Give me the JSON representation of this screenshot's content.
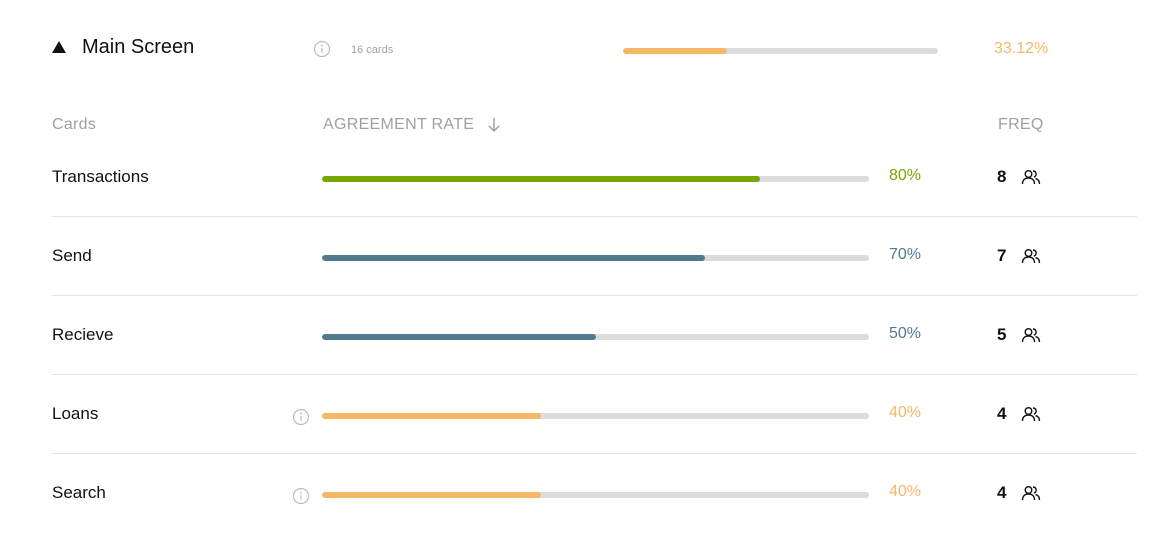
{
  "header": {
    "title": "Main Screen",
    "card_count": "16 cards",
    "progress": 0.3312,
    "percent_label": "33.12%",
    "color": "#f7b866"
  },
  "columns": {
    "cards": "Cards",
    "agreement_rate": "AGREEMENT RATE",
    "freq": "FREQ"
  },
  "rows": [
    {
      "name": "Transactions",
      "percent": 80,
      "percent_label": "80%",
      "freq": "8",
      "color": "#78a500",
      "info": false
    },
    {
      "name": "Send",
      "percent": 70,
      "percent_label": "70%",
      "freq": "7",
      "color": "#527a8e",
      "info": false
    },
    {
      "name": "Recieve",
      "percent": 50,
      "percent_label": "50%",
      "freq": "5",
      "color": "#527a8e",
      "info": false
    },
    {
      "name": "Loans",
      "percent": 40,
      "percent_label": "40%",
      "freq": "4",
      "color": "#f7b866",
      "info": true
    },
    {
      "name": "Search",
      "percent": 40,
      "percent_label": "40%",
      "freq": "4",
      "color": "#f7b866",
      "info": true
    }
  ],
  "icons": {
    "toggle": "caret-up-icon",
    "info": "info-icon",
    "sort": "arrow-down-icon",
    "users": "users-icon"
  }
}
